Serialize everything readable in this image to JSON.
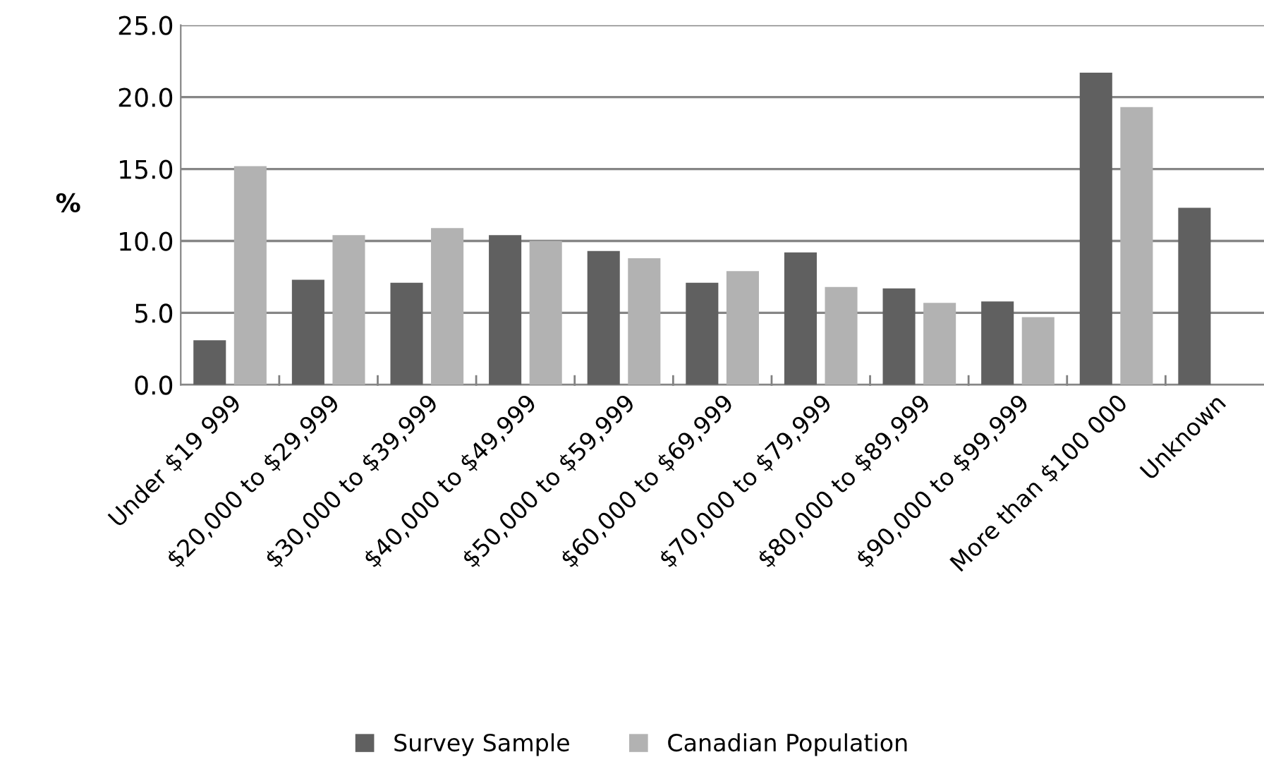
{
  "chart_data": {
    "type": "bar",
    "ylabel": "%",
    "categories": [
      "Under $19 999",
      "$20,000 to $29,999",
      "$30,000 to $39,999",
      "$40,000 to $49,999",
      "$50,000 to $59,999",
      "$60,000 to $69,999",
      "$70,000 to $79,999",
      "$80,000 to $89,999",
      "$90,000 to $99,999",
      "More than $100 000",
      "Unknown"
    ],
    "series": [
      {
        "name": "Survey Sample",
        "color": "#606060",
        "values": [
          3.1,
          7.3,
          7.1,
          10.4,
          9.3,
          7.1,
          9.2,
          6.7,
          5.8,
          21.7,
          12.3
        ]
      },
      {
        "name": "Canadian Population",
        "color": "#b2b2b2",
        "values": [
          15.2,
          10.4,
          10.9,
          10.0,
          8.8,
          7.9,
          6.8,
          5.7,
          4.7,
          19.3,
          null
        ]
      }
    ],
    "ylim": [
      0,
      25
    ],
    "yticks": [
      {
        "value": 0,
        "label": "0.0"
      },
      {
        "value": 5,
        "label": "5.0"
      },
      {
        "value": 10,
        "label": "10.0"
      },
      {
        "value": 15,
        "label": "15.0"
      },
      {
        "value": 20,
        "label": "20.0"
      },
      {
        "value": 25,
        "label": "25.0"
      }
    ],
    "grid": "y",
    "legend": "bottom"
  }
}
